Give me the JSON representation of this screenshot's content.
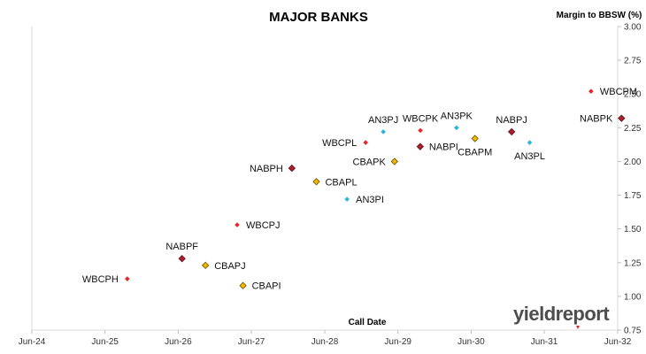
{
  "chart_data": {
    "type": "scatter",
    "title": "MAJOR BANKS",
    "xlabel": "Call Date",
    "ylabel": "Margin to BBSW (%)",
    "xlim": [
      "2024-06-01",
      "2032-06-01"
    ],
    "ylim": [
      0.75,
      3.0
    ],
    "x_ticks": [
      "Jun-24",
      "Jun-25",
      "Jun-26",
      "Jun-27",
      "Jun-28",
      "Jun-29",
      "Jun-30",
      "Jun-31",
      "Jun-32"
    ],
    "y_ticks": [
      "0.75",
      "1.00",
      "1.25",
      "1.50",
      "1.75",
      "2.00",
      "2.25",
      "2.50",
      "2.75",
      "3.00"
    ],
    "y_axis_position": "right",
    "grid": false,
    "legend": "none",
    "colors": {
      "WBC": "#e8252a",
      "NAB": "#b01e2e",
      "CBA": "#f2b500",
      "ANZ": "#29b6de"
    },
    "points": [
      {
        "label": "WBCPH",
        "issuer": "WBC",
        "x": "2025-09-20",
        "y": 1.13,
        "label_pos": "left"
      },
      {
        "label": "NABPF",
        "issuer": "NAB",
        "x": "2026-06-20",
        "y": 1.28,
        "label_pos": "above"
      },
      {
        "label": "CBAPJ",
        "issuer": "CBA",
        "x": "2026-10-15",
        "y": 1.23,
        "label_pos": "right"
      },
      {
        "label": "CBAPI",
        "issuer": "CBA",
        "x": "2027-04-20",
        "y": 1.08,
        "label_pos": "right"
      },
      {
        "label": "WBCPJ",
        "issuer": "WBC",
        "x": "2027-03-22",
        "y": 1.53,
        "label_pos": "right"
      },
      {
        "label": "NABPH",
        "issuer": "NAB",
        "x": "2027-12-20",
        "y": 1.95,
        "label_pos": "left"
      },
      {
        "label": "CBAPL",
        "issuer": "CBA",
        "x": "2028-04-20",
        "y": 1.85,
        "label_pos": "right"
      },
      {
        "label": "AN3PI",
        "issuer": "ANZ",
        "x": "2028-09-20",
        "y": 1.72,
        "label_pos": "right"
      },
      {
        "label": "WBCPL",
        "issuer": "WBC",
        "x": "2028-12-22",
        "y": 2.14,
        "label_pos": "left"
      },
      {
        "label": "AN3PJ",
        "issuer": "ANZ",
        "x": "2029-03-20",
        "y": 2.22,
        "label_pos": "above"
      },
      {
        "label": "CBAPK",
        "issuer": "CBA",
        "x": "2029-05-15",
        "y": 2.0,
        "label_pos": "left"
      },
      {
        "label": "WBCPK",
        "issuer": "WBC",
        "x": "2029-09-21",
        "y": 2.23,
        "label_pos": "above"
      },
      {
        "label": "NABPI",
        "issuer": "NAB",
        "x": "2029-09-20",
        "y": 2.11,
        "label_pos": "right"
      },
      {
        "label": "AN3PK",
        "issuer": "ANZ",
        "x": "2030-03-20",
        "y": 2.25,
        "label_pos": "above"
      },
      {
        "label": "CBAPM",
        "issuer": "CBA",
        "x": "2030-06-20",
        "y": 2.17,
        "label_pos": "below"
      },
      {
        "label": "NABPJ",
        "issuer": "NAB",
        "x": "2030-12-20",
        "y": 2.22,
        "label_pos": "above"
      },
      {
        "label": "AN3PL",
        "issuer": "ANZ",
        "x": "2031-03-20",
        "y": 2.14,
        "label_pos": "below"
      },
      {
        "label": "WBCPM",
        "issuer": "WBC",
        "x": "2032-01-20",
        "y": 2.52,
        "label_pos": "right"
      },
      {
        "label": "NABPK",
        "issuer": "NAB",
        "x": "2032-06-20",
        "y": 2.32,
        "label_pos": "left"
      }
    ]
  },
  "branding": {
    "logo_text": "yieldreport"
  }
}
